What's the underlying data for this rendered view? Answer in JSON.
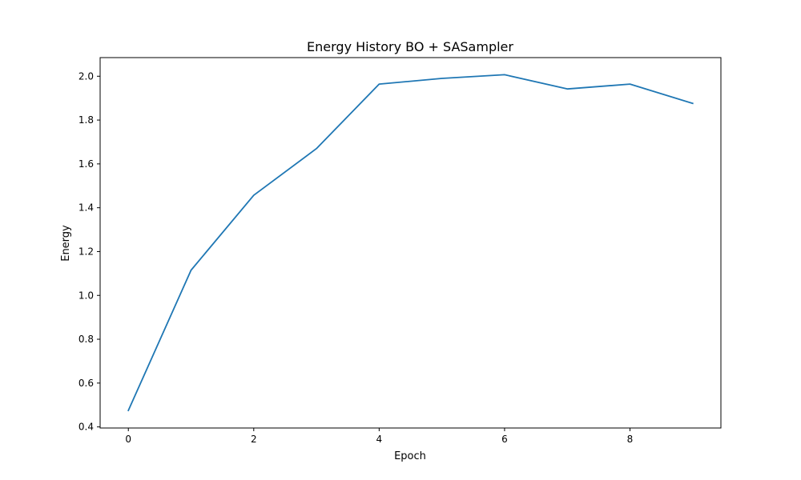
{
  "chart_data": {
    "type": "line",
    "title": "Energy History BO + SASampler",
    "xlabel": "Epoch",
    "ylabel": "Energy",
    "xlim": [
      -0.45,
      9.45
    ],
    "ylim": [
      0.395,
      2.085
    ],
    "xticks": [
      0,
      2,
      4,
      6,
      8
    ],
    "xtick_labels": [
      "0",
      "2",
      "4",
      "6",
      "8"
    ],
    "yticks": [
      0.4,
      0.6,
      0.8,
      1.0,
      1.2,
      1.4,
      1.6,
      1.8,
      2.0
    ],
    "ytick_labels": [
      "0.4",
      "0.6",
      "0.8",
      "1.0",
      "1.2",
      "1.4",
      "1.6",
      "1.8",
      "2.0"
    ],
    "grid": false,
    "series": [
      {
        "color": "#1f77b4",
        "x": [
          0,
          1,
          2,
          3,
          4,
          5,
          6,
          7,
          8,
          9
        ],
        "values": [
          0.475,
          1.115,
          1.457,
          1.67,
          1.964,
          1.99,
          2.007,
          1.942,
          1.964,
          1.876
        ]
      }
    ]
  }
}
